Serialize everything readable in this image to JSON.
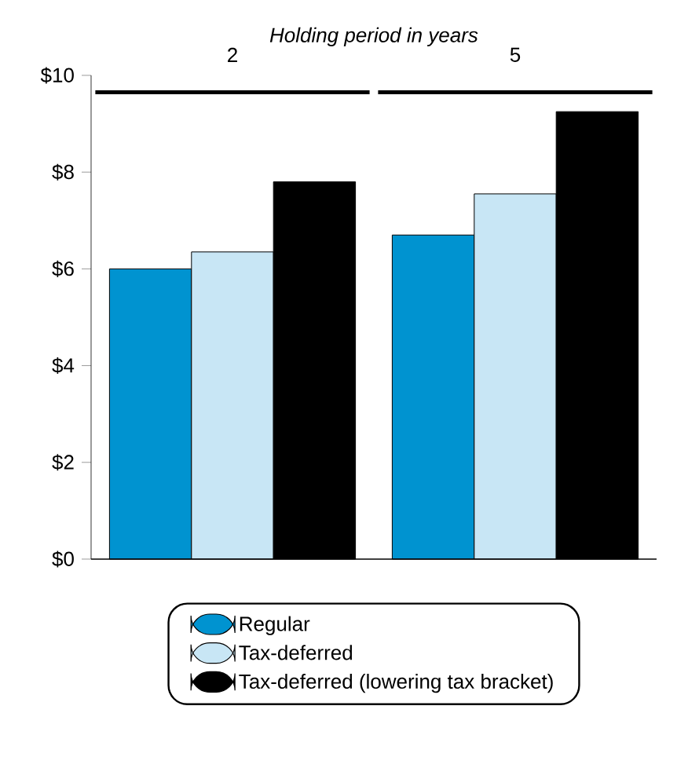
{
  "chart_data": {
    "type": "bar",
    "xlabel": "Holding period in years",
    "categories": [
      "2",
      "5"
    ],
    "series": [
      {
        "name": "Regular",
        "color": "#0093d0",
        "values": [
          6.0,
          6.7
        ]
      },
      {
        "name": "Tax-deferred",
        "color": "#c8e6f5",
        "values": [
          6.35,
          7.55
        ]
      },
      {
        "name": "Tax-deferred (lowering tax bracket)",
        "color": "#000000",
        "values": [
          7.8,
          9.25
        ]
      }
    ],
    "ylim": [
      0,
      10
    ],
    "yticks": [
      {
        "value": 0,
        "label": "$0"
      },
      {
        "value": 2,
        "label": "$2"
      },
      {
        "value": 4,
        "label": "$4"
      },
      {
        "value": 6,
        "label": "$6"
      },
      {
        "value": 8,
        "label": "$8"
      },
      {
        "value": 10,
        "label": "$10"
      }
    ],
    "legend": "bottom"
  }
}
